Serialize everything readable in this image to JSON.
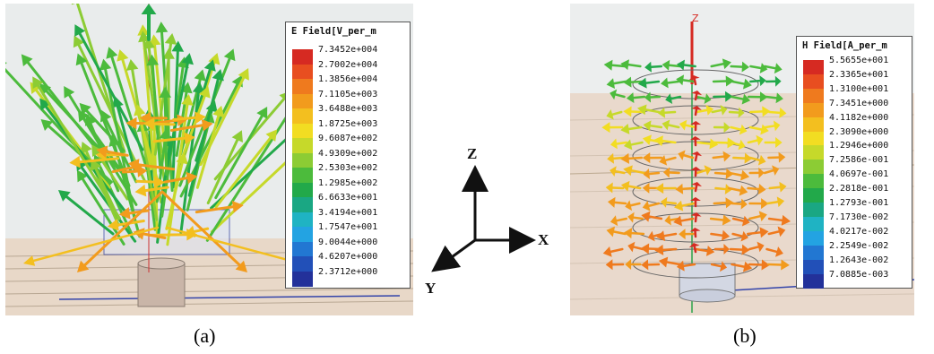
{
  "panel_a": {
    "legend": {
      "title": "E Field[V_per_m",
      "values": [
        "7.3452e+004",
        "2.7002e+004",
        "1.3856e+004",
        "7.1105e+003",
        "3.6488e+003",
        "1.8725e+003",
        "9.6087e+002",
        "4.9309e+002",
        "2.5303e+002",
        "1.2985e+002",
        "6.6633e+001",
        "3.4194e+001",
        "1.7547e+001",
        "9.0044e+000",
        "4.6207e+000",
        "2.3712e+000"
      ]
    },
    "caption": "(a)"
  },
  "panel_b": {
    "legend": {
      "title": "H Field[A_per_m",
      "values": [
        "5.5655e+001",
        "2.3365e+001",
        "1.3100e+001",
        "7.3451e+000",
        "4.1182e+000",
        "2.3090e+000",
        "1.2946e+000",
        "7.2586e-001",
        "4.0697e-001",
        "2.2818e-001",
        "1.2793e-001",
        "7.1730e-002",
        "4.0217e-002",
        "2.2549e-002",
        "1.2643e-002",
        "7.0885e-003"
      ]
    },
    "axis_z_label": "Z",
    "caption": "(b)"
  },
  "axes": {
    "x": "X",
    "y": "Y",
    "z": "Z"
  },
  "colors": {
    "scale": [
      "#d62a22",
      "#e84e20",
      "#ef7a1e",
      "#f29b1d",
      "#f3bf1f",
      "#f2dd22",
      "#c6d92a",
      "#8ccc34",
      "#4cbb3c",
      "#22a94a",
      "#1aa783",
      "#1fb3c3",
      "#23a3e2",
      "#2277d2",
      "#2250b8",
      "#23319a"
    ]
  }
}
